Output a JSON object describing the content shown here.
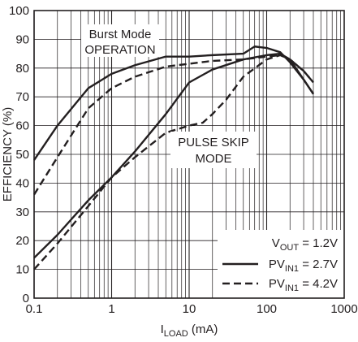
{
  "chart_data": {
    "type": "line",
    "title": "",
    "xlabel_main": "I",
    "xlabel_sub": "LOAD",
    "xlabel_unit": " (mA)",
    "ylabel": "EFFICIENCY (%)",
    "xscale": "log",
    "xlim": [
      0.1,
      1000
    ],
    "ylim": [
      0,
      100
    ],
    "grid": true,
    "x_ticks": [
      0.1,
      1,
      10,
      100,
      1000
    ],
    "x_tick_labels": [
      "0.1",
      "1",
      "10",
      "100",
      "1000"
    ],
    "y_ticks": [
      0,
      10,
      20,
      30,
      40,
      50,
      60,
      70,
      80,
      90,
      100
    ],
    "y_tick_labels": [
      "0",
      "10",
      "20",
      "30",
      "40",
      "50",
      "60",
      "70",
      "80",
      "90",
      "100"
    ],
    "annotations": {
      "burst_line1": "Burst Mode",
      "burst_line2": "OPERATION",
      "pulse_line1": "PULSE SKIP",
      "pulse_line2": "MODE"
    },
    "legend": {
      "placement": "bottom-right",
      "vout_main": "V",
      "vout_sub": "OUT",
      "vout_value": " = 1.2V",
      "entries": [
        {
          "main": "PV",
          "sub": "IN1",
          "value": " = 2.7V",
          "style": "solid"
        },
        {
          "main": "PV",
          "sub": "IN1",
          "value": " = 4.2V",
          "style": "dashed"
        }
      ]
    },
    "colors": {
      "line": "#231f20",
      "grid": "#231f20",
      "background": "#ffffff"
    },
    "series": [
      {
        "id": "burst-2v7",
        "style": "solid",
        "points": [
          [
            0.1,
            48
          ],
          [
            0.2,
            60
          ],
          [
            0.5,
            73
          ],
          [
            1,
            78
          ],
          [
            2,
            81
          ],
          [
            5,
            84
          ],
          [
            10,
            84
          ],
          [
            20,
            84.5
          ],
          [
            50,
            85
          ],
          [
            70,
            87.5
          ],
          [
            100,
            87
          ],
          [
            150,
            85.5
          ],
          [
            200,
            82
          ],
          [
            300,
            76
          ],
          [
            400,
            71
          ]
        ]
      },
      {
        "id": "burst-4v2",
        "style": "dashed",
        "points": [
          [
            0.1,
            36
          ],
          [
            0.2,
            49
          ],
          [
            0.5,
            66
          ],
          [
            1,
            73
          ],
          [
            2,
            77
          ],
          [
            5,
            80.5
          ],
          [
            10,
            81.5
          ],
          [
            20,
            82.5
          ],
          [
            50,
            83
          ],
          [
            100,
            84
          ],
          [
            150,
            84.5
          ],
          [
            200,
            83
          ],
          [
            300,
            79
          ],
          [
            400,
            75
          ]
        ]
      },
      {
        "id": "pulse-2v7",
        "style": "solid",
        "points": [
          [
            0.1,
            14
          ],
          [
            0.2,
            22
          ],
          [
            0.5,
            34
          ],
          [
            1,
            42
          ],
          [
            2,
            51
          ],
          [
            5,
            64
          ],
          [
            10,
            75
          ],
          [
            20,
            79.5
          ],
          [
            50,
            83
          ],
          [
            100,
            84.5
          ],
          [
            150,
            85
          ],
          [
            200,
            83
          ],
          [
            300,
            76
          ],
          [
            400,
            71
          ]
        ]
      },
      {
        "id": "pulse-4v2",
        "style": "dashed",
        "points": [
          [
            0.1,
            10
          ],
          [
            0.2,
            19
          ],
          [
            0.5,
            32
          ],
          [
            1,
            42
          ],
          [
            2,
            49
          ],
          [
            5,
            57.5
          ],
          [
            10,
            60
          ],
          [
            15,
            61
          ],
          [
            20,
            64
          ],
          [
            30,
            69
          ],
          [
            50,
            77
          ],
          [
            100,
            83
          ],
          [
            150,
            84.5
          ],
          [
            200,
            83
          ],
          [
            300,
            79
          ],
          [
            400,
            75
          ]
        ]
      }
    ]
  }
}
